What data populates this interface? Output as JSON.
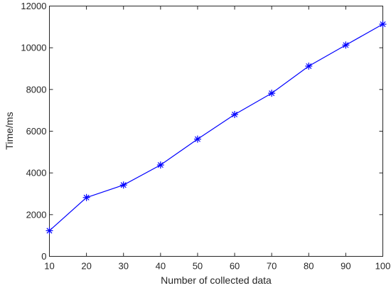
{
  "chart_data": {
    "type": "line",
    "xlabel": "Number of collected data",
    "ylabel": "Time/ms",
    "xlim": [
      10,
      100
    ],
    "ylim": [
      0,
      12000
    ],
    "xticks": [
      10,
      20,
      30,
      40,
      50,
      60,
      70,
      80,
      90,
      100
    ],
    "yticks": [
      0,
      2000,
      4000,
      6000,
      8000,
      10000,
      12000
    ],
    "grid": false,
    "marker": "asterisk",
    "line_color": "#0000ff",
    "series": [
      {
        "x": [
          10,
          20,
          30,
          40,
          50,
          60,
          70,
          80,
          90,
          100
        ],
        "values": [
          1230,
          2820,
          3420,
          4380,
          5620,
          6800,
          7820,
          9120,
          10130,
          11130
        ]
      }
    ]
  }
}
